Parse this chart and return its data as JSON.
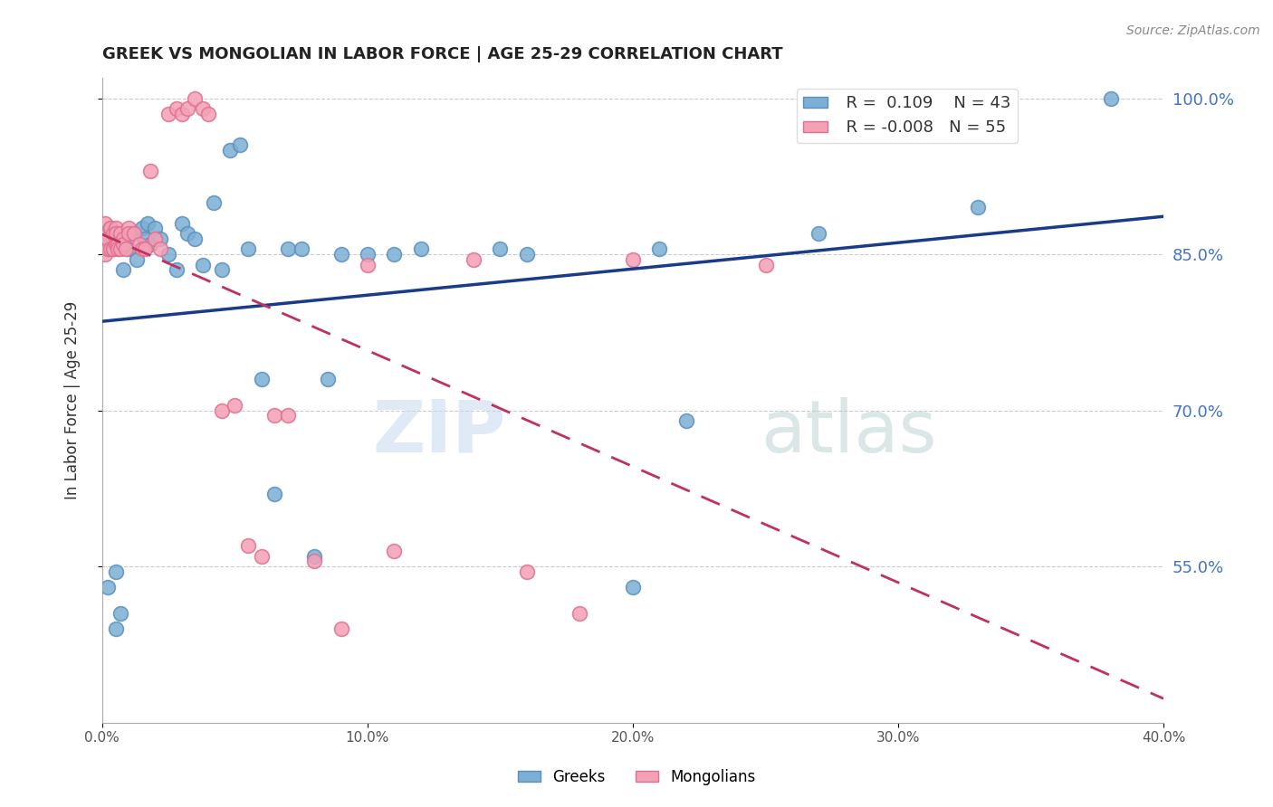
{
  "title": "GREEK VS MONGOLIAN IN LABOR FORCE | AGE 25-29 CORRELATION CHART",
  "source": "Source: ZipAtlas.com",
  "ylabel": "In Labor Force | Age 25-29",
  "xlim": [
    0.0,
    0.4
  ],
  "ylim": [
    0.4,
    1.02
  ],
  "yticks": [
    0.55,
    0.7,
    0.85,
    1.0
  ],
  "xticks": [
    0.0,
    0.1,
    0.2,
    0.3,
    0.4
  ],
  "greek_color": "#7bafd4",
  "mongolian_color": "#f4a0b5",
  "greek_edge": "#5b8fbf",
  "mongolian_edge": "#e07090",
  "greek_line_color": "#1a3a8a",
  "mongolian_line_color": "#c03060",
  "watermark_zip": "ZIP",
  "watermark_atlas": "atlas",
  "legend_r_greek": "R =  0.109",
  "legend_n_greek": "N = 43",
  "legend_r_mongolian": "R = -0.008",
  "legend_n_mongolian": "N = 55",
  "greeks_x": [
    0.002,
    0.005,
    0.005,
    0.007,
    0.008,
    0.01,
    0.012,
    0.013,
    0.015,
    0.016,
    0.017,
    0.018,
    0.02,
    0.022,
    0.025,
    0.028,
    0.03,
    0.032,
    0.035,
    0.038,
    0.042,
    0.045,
    0.048,
    0.052,
    0.055,
    0.06,
    0.065,
    0.07,
    0.075,
    0.08,
    0.085,
    0.09,
    0.1,
    0.11,
    0.12,
    0.15,
    0.16,
    0.2,
    0.21,
    0.22,
    0.27,
    0.33,
    0.38
  ],
  "greeks_y": [
    0.53,
    0.545,
    0.49,
    0.505,
    0.835,
    0.855,
    0.87,
    0.845,
    0.875,
    0.865,
    0.88,
    0.86,
    0.875,
    0.865,
    0.85,
    0.835,
    0.88,
    0.87,
    0.865,
    0.84,
    0.9,
    0.835,
    0.95,
    0.955,
    0.855,
    0.73,
    0.62,
    0.855,
    0.855,
    0.56,
    0.73,
    0.85,
    0.85,
    0.85,
    0.855,
    0.855,
    0.85,
    0.53,
    0.855,
    0.69,
    0.87,
    0.895,
    1.0
  ],
  "mongolians_x": [
    0.001,
    0.001,
    0.001,
    0.001,
    0.001,
    0.002,
    0.002,
    0.002,
    0.003,
    0.003,
    0.003,
    0.004,
    0.004,
    0.004,
    0.005,
    0.005,
    0.005,
    0.006,
    0.006,
    0.007,
    0.007,
    0.008,
    0.008,
    0.009,
    0.01,
    0.01,
    0.012,
    0.014,
    0.015,
    0.016,
    0.018,
    0.02,
    0.022,
    0.025,
    0.028,
    0.03,
    0.032,
    0.035,
    0.038,
    0.04,
    0.045,
    0.05,
    0.055,
    0.06,
    0.065,
    0.07,
    0.08,
    0.09,
    0.1,
    0.11,
    0.14,
    0.16,
    0.18,
    0.2,
    0.25
  ],
  "mongolians_y": [
    0.86,
    0.88,
    0.87,
    0.865,
    0.85,
    0.87,
    0.855,
    0.865,
    0.875,
    0.875,
    0.855,
    0.855,
    0.87,
    0.855,
    0.875,
    0.87,
    0.86,
    0.86,
    0.855,
    0.855,
    0.87,
    0.865,
    0.86,
    0.855,
    0.875,
    0.87,
    0.87,
    0.86,
    0.855,
    0.855,
    0.93,
    0.865,
    0.855,
    0.985,
    0.99,
    0.985,
    0.99,
    1.0,
    0.99,
    0.985,
    0.7,
    0.705,
    0.57,
    0.56,
    0.695,
    0.695,
    0.555,
    0.49,
    0.84,
    0.565,
    0.845,
    0.545,
    0.505,
    0.845,
    0.84
  ]
}
